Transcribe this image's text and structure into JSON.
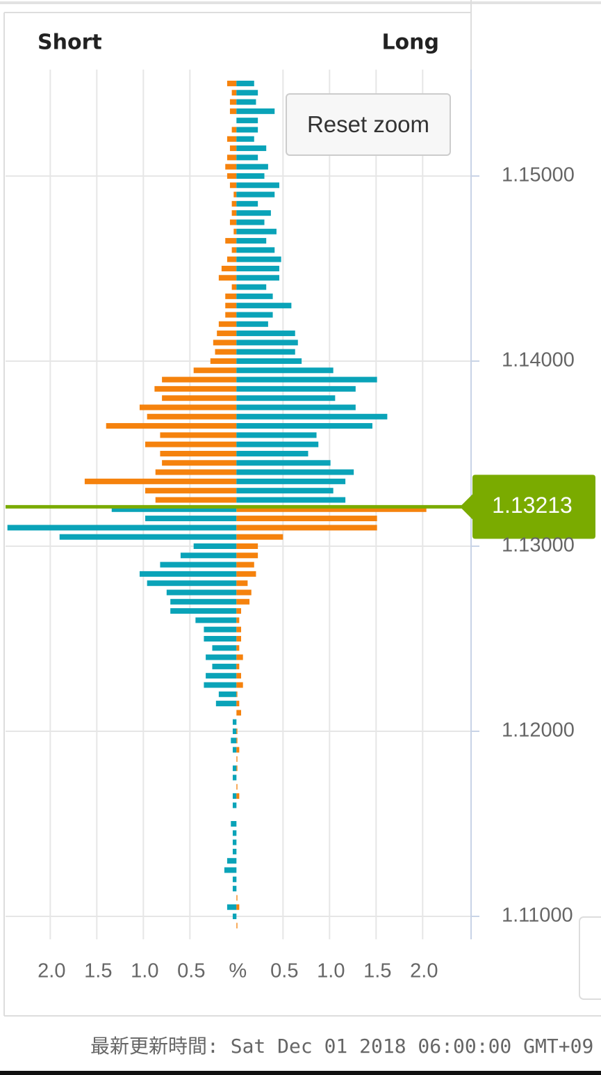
{
  "chart_data": {
    "type": "butterfly-bar",
    "left_title": "Short",
    "right_title": "Long",
    "y": [
      1.155,
      1.1545,
      1.154,
      1.1535,
      1.153,
      1.1525,
      1.152,
      1.1515,
      1.151,
      1.1505,
      1.15,
      1.1495,
      1.149,
      1.1485,
      1.148,
      1.1475,
      1.147,
      1.1465,
      1.146,
      1.1455,
      1.145,
      1.1445,
      1.144,
      1.1435,
      1.143,
      1.1425,
      1.142,
      1.1415,
      1.141,
      1.1405,
      1.14,
      1.1395,
      1.139,
      1.1385,
      1.138,
      1.1375,
      1.137,
      1.1365,
      1.136,
      1.1355,
      1.135,
      1.1345,
      1.134,
      1.1335,
      1.133,
      1.1325,
      1.132,
      1.1315,
      1.131,
      1.1305,
      1.13,
      1.1295,
      1.129,
      1.1285,
      1.128,
      1.1275,
      1.127,
      1.1265,
      1.126,
      1.1255,
      1.125,
      1.1245,
      1.124,
      1.1235,
      1.123,
      1.1225,
      1.122,
      1.1215,
      1.121,
      1.1205,
      1.12,
      1.1195,
      1.119,
      1.1185,
      1.118,
      1.1175,
      1.117,
      1.1165,
      1.116,
      1.1155,
      1.115,
      1.1145,
      1.114,
      1.1135,
      1.113,
      1.1125,
      1.112,
      1.1115,
      1.111,
      1.1105,
      1.11,
      1.1095
    ],
    "series": [
      {
        "color": "#f5820d",
        "color_below": "#0aa3b8",
        "values": [
          -0.1,
          -0.05,
          -0.07,
          -0.07,
          0,
          -0.05,
          -0.1,
          -0.07,
          -0.1,
          -0.12,
          -0.1,
          -0.07,
          -0.03,
          -0.05,
          -0.05,
          -0.07,
          -0.03,
          -0.12,
          -0.05,
          -0.1,
          -0.16,
          -0.19,
          -0.05,
          -0.12,
          -0.12,
          -0.12,
          -0.19,
          -0.21,
          -0.25,
          -0.23,
          -0.28,
          -0.46,
          -0.8,
          -0.88,
          -0.8,
          -1.04,
          -0.96,
          -1.4,
          -0.82,
          -0.98,
          -0.82,
          -0.8,
          -0.87,
          -1.63,
          -0.98,
          -0.87,
          -1.34,
          -0.98,
          -2.46,
          -1.9,
          -0.46,
          -0.6,
          -0.82,
          -1.04,
          -0.96,
          -0.75,
          -0.71,
          -0.71,
          -0.44,
          -0.35,
          -0.35,
          -0.26,
          -0.33,
          -0.26,
          -0.33,
          -0.35,
          -0.19,
          -0.22,
          0,
          -0.04,
          -0.04,
          -0.06,
          -0.04,
          0,
          -0.04,
          -0.04,
          0,
          -0.04,
          -0.04,
          0,
          -0.06,
          -0.04,
          -0.04,
          -0.04,
          -0.1,
          -0.13,
          -0.04,
          -0.04,
          0,
          -0.1,
          -0.04,
          0
        ]
      },
      {
        "color": "#0aa3b8",
        "color_below": "#f5820d",
        "values": [
          0.19,
          0.23,
          0.21,
          0.41,
          0.23,
          0.23,
          0.19,
          0.32,
          0.23,
          0.34,
          0.3,
          0.46,
          0.41,
          0.23,
          0.37,
          0.3,
          0.43,
          0.32,
          0.41,
          0.48,
          0.46,
          0.46,
          0.32,
          0.39,
          0.59,
          0.39,
          0.34,
          0.63,
          0.66,
          0.63,
          0.7,
          1.04,
          1.51,
          1.28,
          1.06,
          1.28,
          1.62,
          1.46,
          0.86,
          0.88,
          0.77,
          1.01,
          1.26,
          1.17,
          1.04,
          1.17,
          2.04,
          1.51,
          1.51,
          0.5,
          0.23,
          0.23,
          0.19,
          0.21,
          0.12,
          0.16,
          0.14,
          0.05,
          0.03,
          0.05,
          0.05,
          0.03,
          0.07,
          0.03,
          0.05,
          0.07,
          0.01,
          0.03,
          0.05,
          0,
          0.01,
          0.01,
          0.03,
          0.01,
          0.01,
          0,
          0.01,
          0.03,
          0,
          0,
          0,
          0,
          0,
          0,
          0,
          0,
          0,
          0,
          0.01,
          0.03,
          0,
          0.01
        ]
      }
    ],
    "current_price": 1.13213,
    "current_price_color": "#7aab00",
    "xlim": [
      -2.48,
      2.52
    ],
    "xticks": [
      {
        "value": -2,
        "label": "2.0"
      },
      {
        "value": -1.5,
        "label": "1.5"
      },
      {
        "value": -1,
        "label": "1.0"
      },
      {
        "value": -0.5,
        "label": "0.5"
      },
      {
        "value": 0,
        "label": "%"
      },
      0.5,
      {
        "value": 1,
        "label": "1.0"
      },
      1.5,
      {
        "value": 2,
        "label": "2.0"
      }
    ],
    "ylim": [
      1.10876,
      1.15575
    ],
    "yticks": [
      {
        "value": 1.11,
        "label": "1.11000"
      },
      {
        "value": 1.12,
        "label": "1.12000"
      },
      {
        "value": 1.13,
        "label": "1.13000"
      },
      {
        "value": 1.14,
        "label": "1.14000"
      },
      {
        "value": 1.15,
        "label": "1.15000"
      }
    ],
    "grid": true
  },
  "ui": {
    "reset_zoom": "Reset zoom",
    "footer": "最新更新時間: Sat Dec 01 2018 06:00:00 GMT+09"
  }
}
